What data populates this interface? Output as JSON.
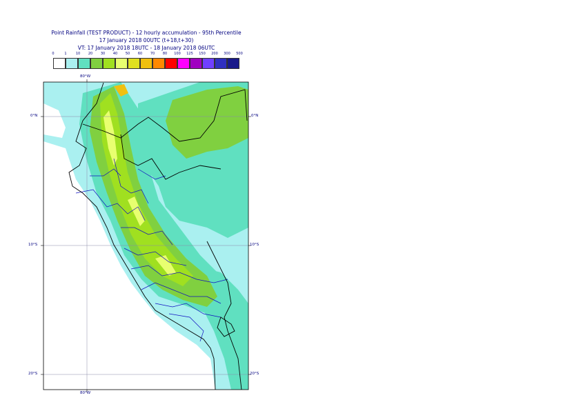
{
  "header": {
    "line1": "Point Rainfall (TEST PRODUCT) - 12 hourly accumulation - 95th Percentile",
    "line2": "17 January 2018 00UTC (t+18,t+30)",
    "line3": "VT: 17 January 2018 18UTC - 18 January 2018 06UTC"
  },
  "legend": {
    "labels": [
      "0",
      "1",
      "10",
      "20",
      "30",
      "40",
      "50",
      "60",
      "70",
      "80",
      "100",
      "125",
      "150",
      "200",
      "300",
      "500"
    ],
    "colors": [
      "#ffffff",
      "#aaf0f0",
      "#60e0c0",
      "#80d040",
      "#a0e020",
      "#e8ff70",
      "#e0e020",
      "#f0c010",
      "#ff8800",
      "#ff0000",
      "#ff00ff",
      "#a000c0",
      "#7040ff",
      "#3030c0",
      "#1a1a8a"
    ]
  },
  "axes": {
    "lon_label": "80°W",
    "lat_labels": [
      "0°N",
      "10°S",
      "20°S"
    ]
  }
}
